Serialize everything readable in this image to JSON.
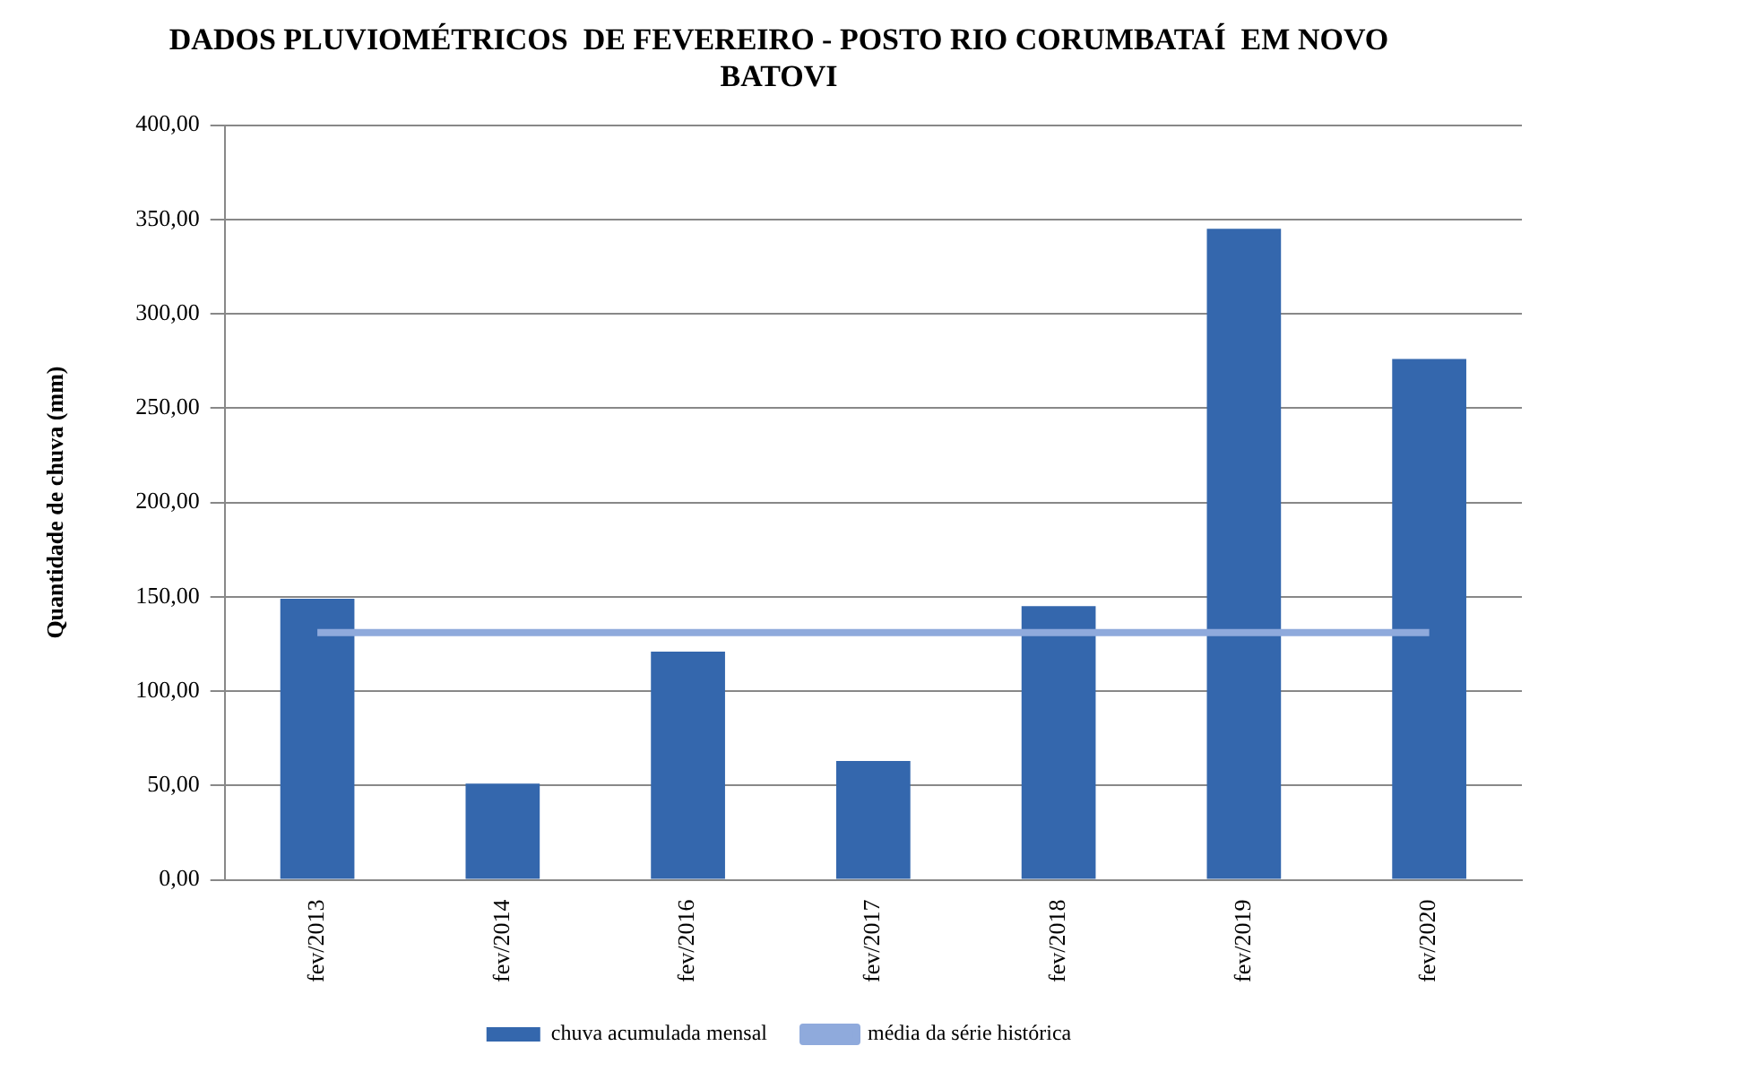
{
  "chart_data": {
    "type": "bar",
    "title": "DADOS PLUVIOMÉTRICOS  DE FEVEREIRO - POSTO RIO CORUMBATAÍ  EM NOVO BATOVI",
    "ylabel": "Quantidade de chuva (mm)",
    "categories": [
      "fev/2013",
      "fev/2014",
      "fev/2016",
      "fev/2017",
      "fev/2018",
      "fev/2019",
      "fev/2020"
    ],
    "series": [
      {
        "name": "chuva acumulada mensal",
        "color": "#3467ad",
        "values": [
          149,
          51,
          121,
          63,
          145,
          345,
          276
        ]
      },
      {
        "name": "média da série histórica",
        "type": "line",
        "color": "#8faadc",
        "values": [
          131,
          131,
          131,
          131,
          131,
          131,
          131
        ]
      }
    ],
    "ylim": [
      0,
      400
    ],
    "yticks": [
      {
        "value": 0,
        "label": "0,00"
      },
      {
        "value": 50,
        "label": "50,00"
      },
      {
        "value": 100,
        "label": "100,00"
      },
      {
        "value": 150,
        "label": "150,00"
      },
      {
        "value": 200,
        "label": "200,00"
      },
      {
        "value": 250,
        "label": "250,00"
      },
      {
        "value": 300,
        "label": "300,00"
      },
      {
        "value": 350,
        "label": "350,00"
      },
      {
        "value": 400,
        "label": "400,00"
      }
    ],
    "grid": "y",
    "legend": "bottom",
    "marker": "none",
    "line_style": "solid"
  }
}
